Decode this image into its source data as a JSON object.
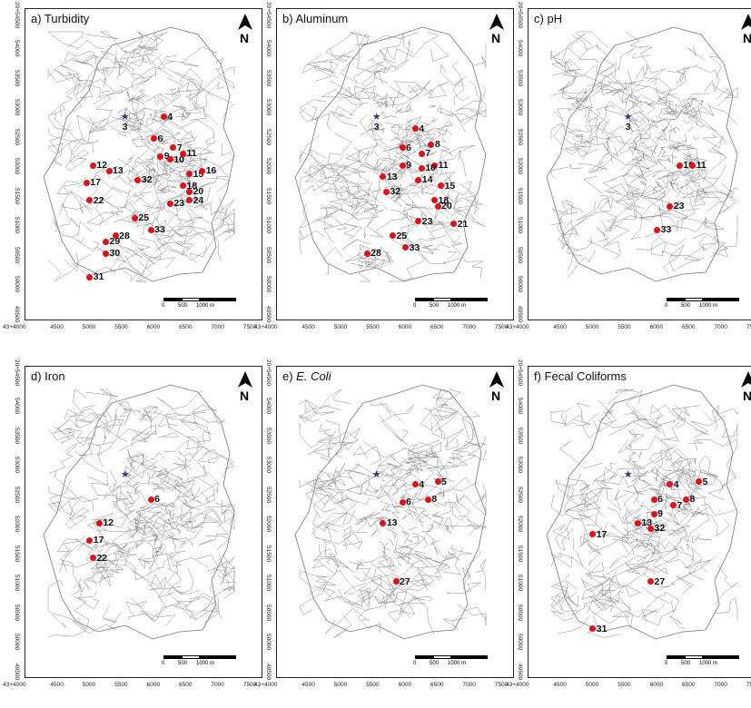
{
  "figure": {
    "panels": [
      {
        "id": "a",
        "title": "a) Turbidity",
        "italic": false,
        "north": "N",
        "reservoir_label": "3",
        "points": [
          {
            "label": "4",
            "x": 6150,
            "y": 52870
          },
          {
            "label": "6",
            "x": 6000,
            "y": 52500
          },
          {
            "label": "7",
            "x": 6300,
            "y": 52350
          },
          {
            "label": "9",
            "x": 6100,
            "y": 52200
          },
          {
            "label": "10",
            "x": 6250,
            "y": 52150
          },
          {
            "label": "11",
            "x": 6450,
            "y": 52250
          },
          {
            "label": "12",
            "x": 5050,
            "y": 52050
          },
          {
            "label": "13",
            "x": 5300,
            "y": 51950
          },
          {
            "label": "15",
            "x": 6550,
            "y": 51900
          },
          {
            "label": "16",
            "x": 6750,
            "y": 51950
          },
          {
            "label": "18",
            "x": 6450,
            "y": 51700
          },
          {
            "label": "20",
            "x": 6550,
            "y": 51600
          },
          {
            "label": "24",
            "x": 6550,
            "y": 51450
          },
          {
            "label": "23",
            "x": 6250,
            "y": 51400
          },
          {
            "label": "32",
            "x": 5750,
            "y": 51800
          },
          {
            "label": "17",
            "x": 4950,
            "y": 51750
          },
          {
            "label": "22",
            "x": 5000,
            "y": 51450
          },
          {
            "label": "25",
            "x": 5700,
            "y": 51150
          },
          {
            "label": "33",
            "x": 5950,
            "y": 50950
          },
          {
            "label": "28",
            "x": 5400,
            "y": 50850
          },
          {
            "label": "29",
            "x": 5250,
            "y": 50750
          },
          {
            "label": "30",
            "x": 5250,
            "y": 50550
          },
          {
            "label": "31",
            "x": 5000,
            "y": 50150
          }
        ]
      },
      {
        "id": "b",
        "title": "b) Aluminum",
        "italic": false,
        "north": "N",
        "reservoir_label": "3",
        "points": [
          {
            "label": "4",
            "x": 6150,
            "y": 52670
          },
          {
            "label": "8",
            "x": 6400,
            "y": 52400
          },
          {
            "label": "6",
            "x": 5950,
            "y": 52350
          },
          {
            "label": "7",
            "x": 6250,
            "y": 52250
          },
          {
            "label": "9",
            "x": 5950,
            "y": 52050
          },
          {
            "label": "11",
            "x": 6450,
            "y": 52050
          },
          {
            "label": "10",
            "x": 6250,
            "y": 52000
          },
          {
            "label": "13",
            "x": 5650,
            "y": 51850
          },
          {
            "label": "14",
            "x": 6200,
            "y": 51800
          },
          {
            "label": "15",
            "x": 6550,
            "y": 51700
          },
          {
            "label": "32",
            "x": 5700,
            "y": 51600
          },
          {
            "label": "18",
            "x": 6450,
            "y": 51450
          },
          {
            "label": "20",
            "x": 6500,
            "y": 51350
          },
          {
            "label": "23",
            "x": 6200,
            "y": 51100
          },
          {
            "label": "21",
            "x": 6750,
            "y": 51050
          },
          {
            "label": "25",
            "x": 5800,
            "y": 50850
          },
          {
            "label": "33",
            "x": 6000,
            "y": 50650
          },
          {
            "label": "28",
            "x": 5400,
            "y": 50550
          }
        ]
      },
      {
        "id": "c",
        "title": "c) pH",
        "italic": false,
        "north": "N",
        "reservoir_label": "3",
        "points": [
          {
            "label": "10",
            "x": 6350,
            "y": 52050
          },
          {
            "label": "11",
            "x": 6550,
            "y": 52050
          },
          {
            "label": "23",
            "x": 6200,
            "y": 51350
          },
          {
            "label": "33",
            "x": 6000,
            "y": 50950
          }
        ]
      },
      {
        "id": "d",
        "title": "d) Iron",
        "italic": false,
        "north": "N",
        "reservoir_label": "",
        "points": [
          {
            "label": "6",
            "x": 5950,
            "y": 52450
          },
          {
            "label": "12",
            "x": 5150,
            "y": 52050
          },
          {
            "label": "17",
            "x": 5000,
            "y": 51750
          },
          {
            "label": "22",
            "x": 5050,
            "y": 51450
          }
        ]
      },
      {
        "id": "e",
        "title": "E. Coli",
        "prefix": "e) ",
        "italic": true,
        "north": "N",
        "reservoir_label": "",
        "points": [
          {
            "label": "4",
            "x": 6150,
            "y": 52700
          },
          {
            "label": "5",
            "x": 6500,
            "y": 52750
          },
          {
            "label": "6",
            "x": 5950,
            "y": 52400
          },
          {
            "label": "8",
            "x": 6350,
            "y": 52450
          },
          {
            "label": "13",
            "x": 5650,
            "y": 52050
          },
          {
            "label": "27",
            "x": 5850,
            "y": 51050
          }
        ]
      },
      {
        "id": "f",
        "title": "f) Fecal Coliforms",
        "italic": false,
        "north": "N",
        "reservoir_label": "",
        "points": [
          {
            "label": "4",
            "x": 6200,
            "y": 52700
          },
          {
            "label": "5",
            "x": 6650,
            "y": 52750
          },
          {
            "label": "6",
            "x": 5950,
            "y": 52450
          },
          {
            "label": "8",
            "x": 6450,
            "y": 52450
          },
          {
            "label": "7",
            "x": 6250,
            "y": 52350
          },
          {
            "label": "9",
            "x": 5950,
            "y": 52200
          },
          {
            "label": "13",
            "x": 5700,
            "y": 52050
          },
          {
            "label": "32",
            "x": 5900,
            "y": 51950
          },
          {
            "label": "17",
            "x": 5000,
            "y": 51850
          },
          {
            "label": "27",
            "x": 5900,
            "y": 51050
          },
          {
            "label": "31",
            "x": 5000,
            "y": 50250
          }
        ]
      }
    ],
    "axes": {
      "x_ticks": [
        "43+4000",
        "4500",
        "5000",
        "5500",
        "6000",
        "6500",
        "7000",
        "7500"
      ],
      "y_ticks": [
        "20+54500",
        "54000",
        "53500",
        "53000",
        "52500",
        "52000",
        "51500",
        "51000",
        "50500",
        "50000",
        "49500"
      ],
      "x_range": [
        4000,
        7700
      ],
      "y_range": [
        49400,
        54700
      ]
    },
    "scale_bar": {
      "labels": [
        "0",
        "500",
        "1000 m"
      ]
    }
  }
}
